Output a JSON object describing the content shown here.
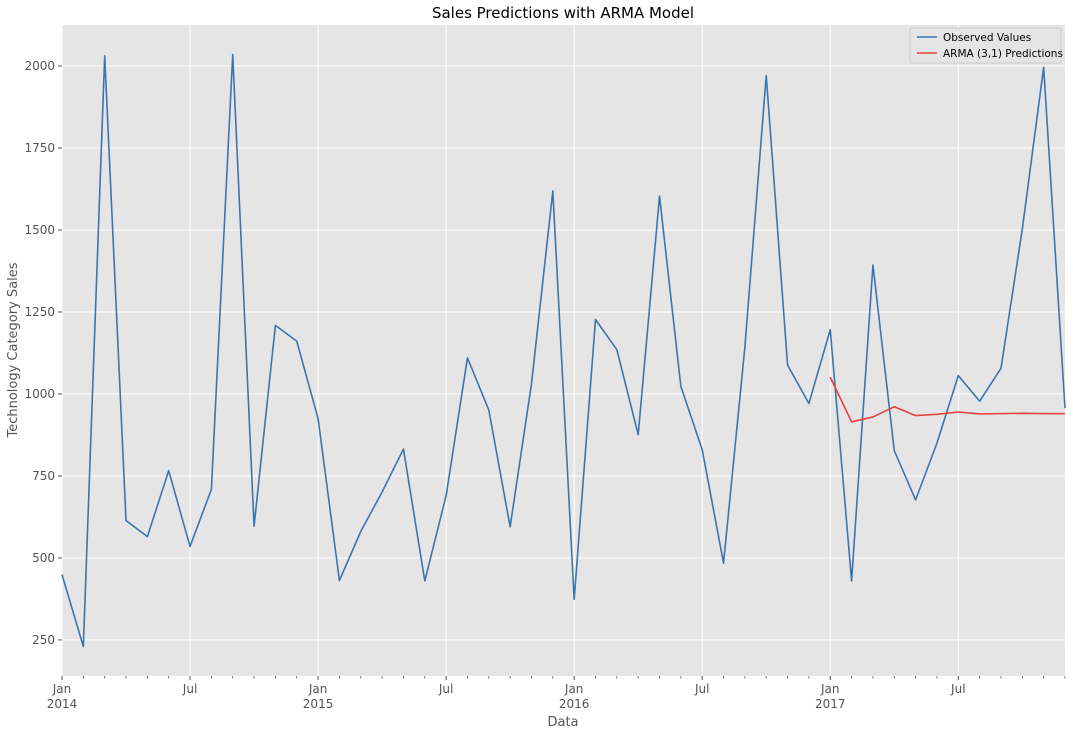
{
  "chart_data": {
    "type": "line",
    "title": "Sales Predictions with ARMA Model",
    "xlabel": "Data",
    "ylabel": "Technology Category Sales",
    "xlim": [
      "2014-01",
      "2017-12"
    ],
    "ylim": [
      140,
      2125
    ],
    "yticks": [
      250,
      500,
      750,
      1000,
      1250,
      1500,
      1750,
      2000
    ],
    "xticks": [
      {
        "month": "2014-01",
        "label": "Jan",
        "year": "2014"
      },
      {
        "month": "2014-07",
        "label": "Jul",
        "year": ""
      },
      {
        "month": "2015-01",
        "label": "Jan",
        "year": "2015"
      },
      {
        "month": "2015-07",
        "label": "Jul",
        "year": ""
      },
      {
        "month": "2016-01",
        "label": "Jan",
        "year": "2016"
      },
      {
        "month": "2016-07",
        "label": "Jul",
        "year": ""
      },
      {
        "month": "2017-01",
        "label": "Jan",
        "year": "2017"
      },
      {
        "month": "2017-07",
        "label": "Jul",
        "year": ""
      }
    ],
    "grid": true,
    "legend_position": "top-right",
    "series": [
      {
        "name": "Observed Values",
        "color": "#3b75af",
        "x": [
          "2014-01",
          "2014-02",
          "2014-03",
          "2014-04",
          "2014-05",
          "2014-06",
          "2014-07",
          "2014-08",
          "2014-09",
          "2014-10",
          "2014-11",
          "2014-12",
          "2015-01",
          "2015-02",
          "2015-03",
          "2015-04",
          "2015-05",
          "2015-06",
          "2015-07",
          "2015-08",
          "2015-09",
          "2015-10",
          "2015-11",
          "2015-12",
          "2016-01",
          "2016-02",
          "2016-03",
          "2016-04",
          "2016-05",
          "2016-06",
          "2016-07",
          "2016-08",
          "2016-09",
          "2016-10",
          "2016-11",
          "2016-12",
          "2017-01",
          "2017-02",
          "2017-03",
          "2017-04",
          "2017-05",
          "2017-06",
          "2017-07",
          "2017-08",
          "2017-09",
          "2017-10",
          "2017-11",
          "2017-12"
        ],
        "values": [
          449,
          230,
          2031,
          614,
          565,
          766,
          535,
          709,
          2035,
          597,
          1209,
          1161,
          925,
          431,
          581,
          701,
          832,
          430,
          690,
          1110,
          951,
          595,
          1031,
          1619,
          374,
          1227,
          1135,
          876,
          1603,
          1023,
          830,
          484,
          1143,
          1971,
          1088,
          971,
          1196,
          430,
          1393,
          827,
          677,
          850,
          1056,
          978,
          1078,
          1503,
          1996,
          957
        ]
      },
      {
        "name": "ARMA (3,1) Predictions",
        "color": "#e8403f",
        "x": [
          "2017-01",
          "2017-02",
          "2017-03",
          "2017-04",
          "2017-05",
          "2017-06",
          "2017-07",
          "2017-08",
          "2017-09",
          "2017-10",
          "2017-11",
          "2017-12"
        ],
        "values": [
          1051,
          915,
          930,
          961,
          934,
          938,
          945,
          939,
          940,
          941,
          940,
          940
        ]
      }
    ]
  }
}
